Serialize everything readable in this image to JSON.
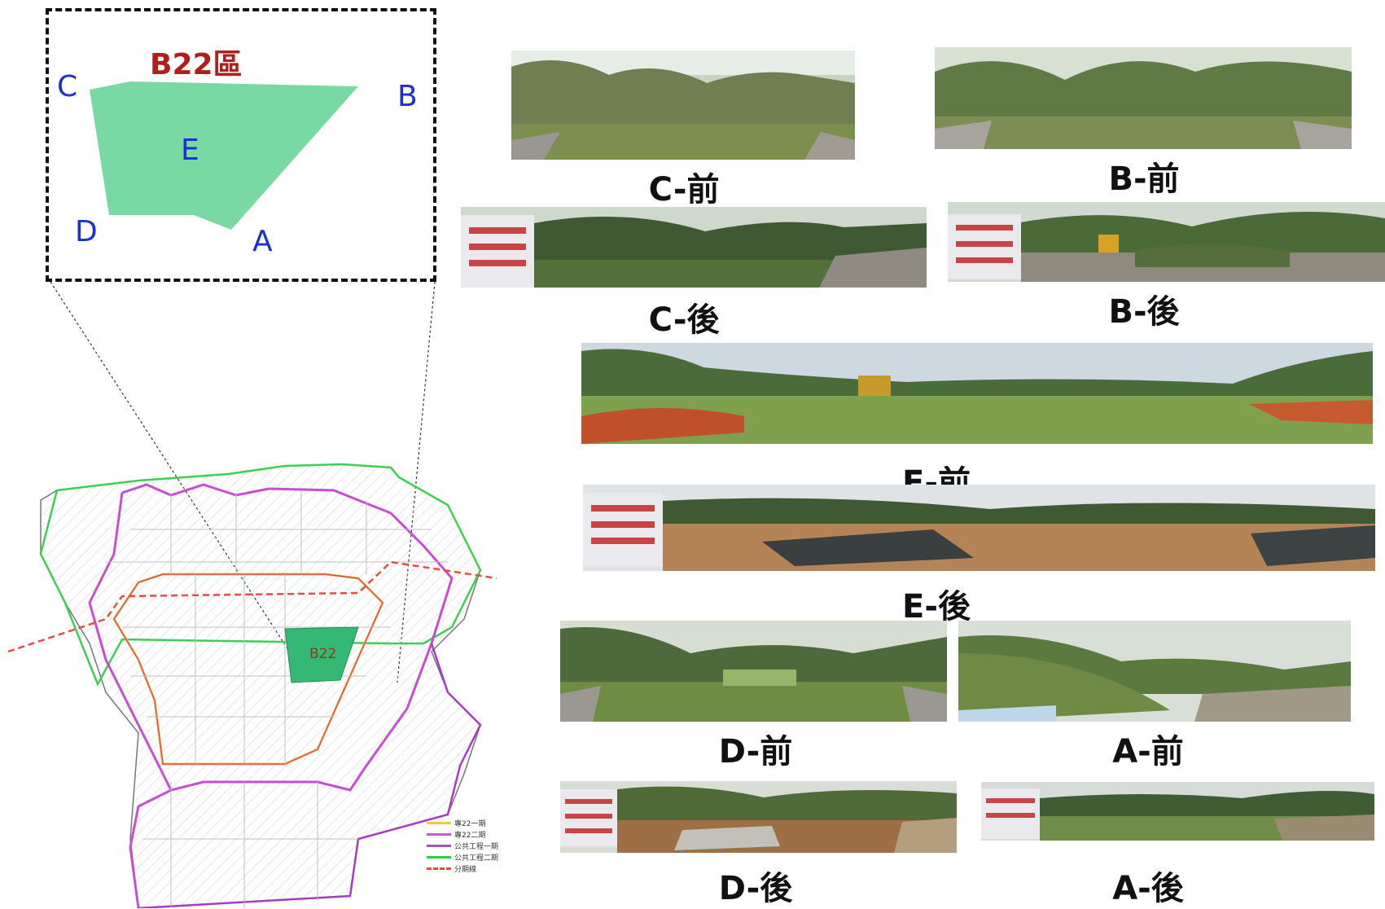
{
  "inset": {
    "title": "B22區",
    "corners": {
      "C": "C",
      "B": "B",
      "D": "D",
      "A": "A",
      "E": "E"
    },
    "fill_color": "#79d9a2",
    "border_color": "#111111"
  },
  "siteplan": {
    "parcel_label": "B22",
    "parcel_color": "#34b874",
    "legend": [
      {
        "label": "專22一期",
        "color": "#f2c94c"
      },
      {
        "label": "專22二期",
        "color": "#c65ad8"
      },
      {
        "label": "公共工程一期",
        "color": "#9b59b6"
      },
      {
        "label": "公共工程二期",
        "color": "#2ecc40"
      },
      {
        "label": "分期線",
        "color": "#e74c3c"
      }
    ]
  },
  "photos": [
    {
      "id": "c-before",
      "caption": "C-前"
    },
    {
      "id": "b-before",
      "caption": "B-前"
    },
    {
      "id": "c-after",
      "caption": "C-後"
    },
    {
      "id": "b-after",
      "caption": "B-後"
    },
    {
      "id": "e-before",
      "caption": "E-前"
    },
    {
      "id": "e-after",
      "caption": "E-後"
    },
    {
      "id": "d-before",
      "caption": "D-前"
    },
    {
      "id": "a-before",
      "caption": "A-前"
    },
    {
      "id": "d-after",
      "caption": "D-後"
    },
    {
      "id": "a-after",
      "caption": "A-後"
    }
  ]
}
